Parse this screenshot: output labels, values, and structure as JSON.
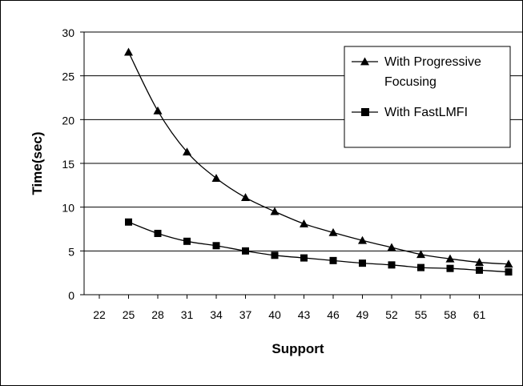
{
  "chart_data": {
    "type": "line",
    "title": "",
    "xlabel": "Support",
    "ylabel": "Time(sec)",
    "x_ticks": [
      "22",
      "25",
      "28",
      "31",
      "34",
      "37",
      "40",
      "43",
      "46",
      "49",
      "52",
      "55",
      "58",
      "61"
    ],
    "y_ticks": [
      "0",
      "5",
      "10",
      "15",
      "20",
      "25",
      "30"
    ],
    "ylim": [
      0,
      30
    ],
    "grid": "horizontal",
    "legend_position": "top-right",
    "series": [
      {
        "name": "With Progressive Focusing",
        "marker": "triangle",
        "color": "#000000",
        "x": [
          25,
          28,
          31,
          34,
          37,
          40,
          43,
          46,
          49,
          52,
          55,
          58,
          61,
          64
        ],
        "values": [
          27.7,
          21.0,
          16.3,
          13.3,
          11.1,
          9.5,
          8.1,
          7.1,
          6.2,
          5.4,
          4.6,
          4.1,
          3.7,
          3.5
        ]
      },
      {
        "name": "With FastLMFI",
        "marker": "square",
        "color": "#000000",
        "x": [
          25,
          28,
          31,
          34,
          37,
          40,
          43,
          46,
          49,
          52,
          55,
          58,
          61,
          64
        ],
        "values": [
          8.3,
          7.0,
          6.1,
          5.6,
          5.0,
          4.5,
          4.2,
          3.9,
          3.6,
          3.4,
          3.1,
          3.0,
          2.8,
          2.6
        ]
      }
    ]
  }
}
